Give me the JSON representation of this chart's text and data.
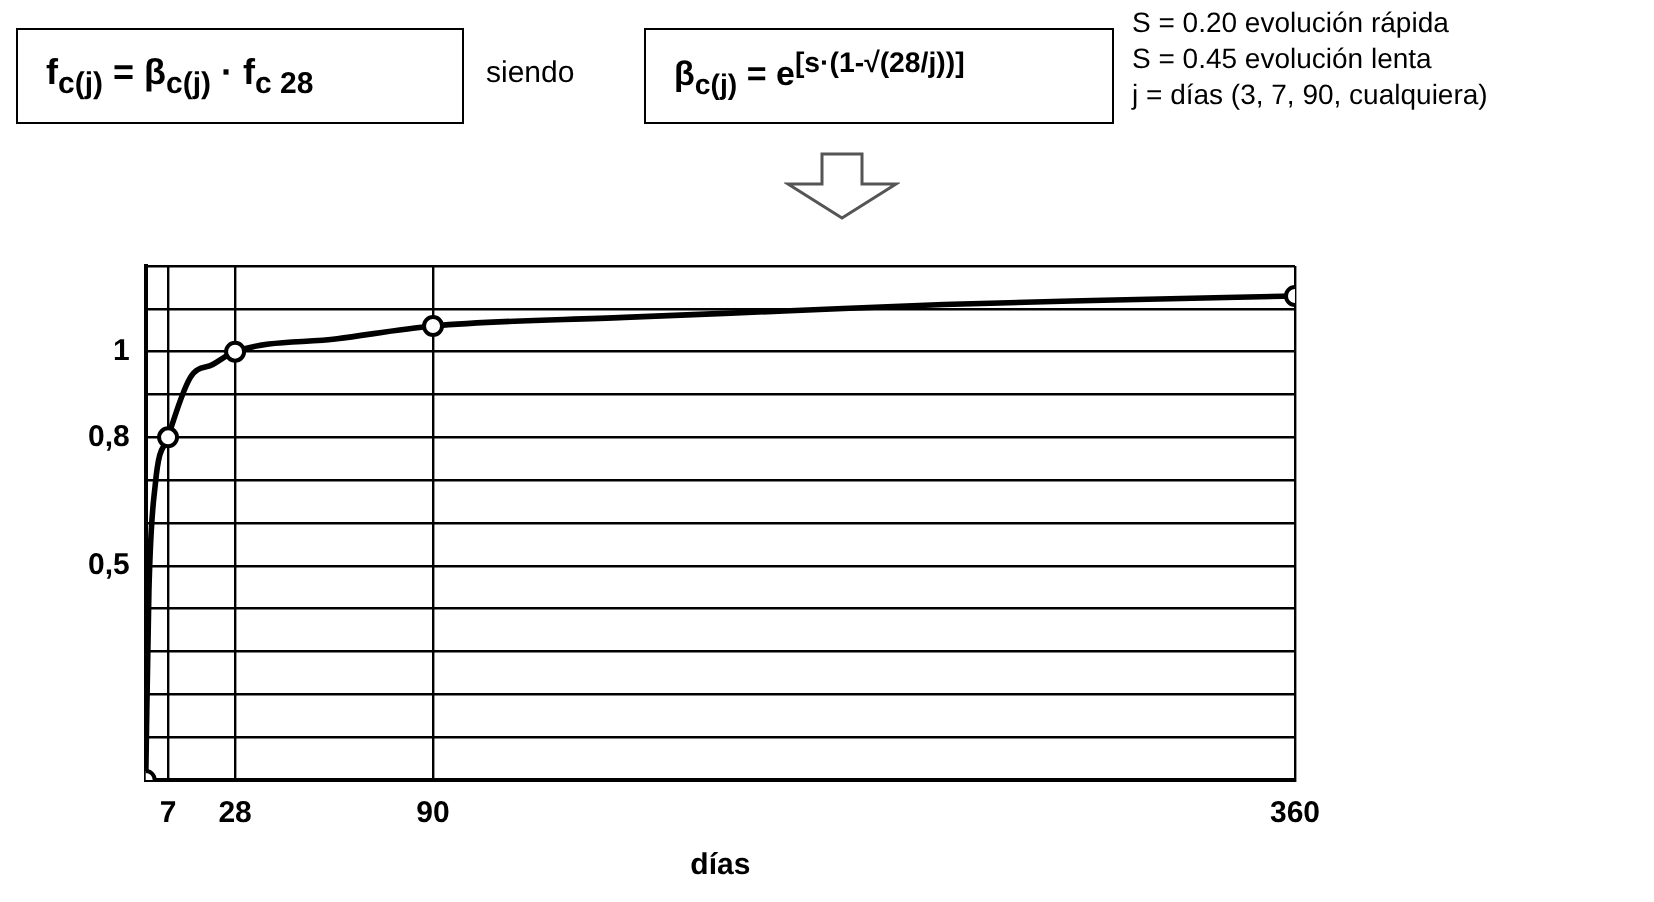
{
  "chart_data": {
    "type": "line",
    "xlabel": "días",
    "annotations": [
      "f$_{c(j)}$ = β$_{c(j)}$ · f$_{c 28}$",
      "siendo",
      "β$_{c(j)}$ = e$^{[s·(1-√(28/j))]}$",
      "S = 0.20 evolución rápida",
      "S = 0.45 evolución lenta",
      "j =  días (3, 7, 90, cualquiera)"
    ],
    "series": [
      {
        "color": "#000000",
        "marker": "none",
        "x": [
          0,
          1,
          3,
          7,
          14,
          21,
          28,
          60,
          90,
          150,
          200,
          250,
          300,
          360
        ],
        "values": [
          0,
          0.44,
          0.69,
          0.8,
          0.94,
          0.97,
          1,
          1.03,
          1.06,
          1.08,
          1.095,
          1.11,
          1.12,
          1.13
        ]
      },
      {
        "type": "scatter",
        "color": "#000000",
        "marker": "circle",
        "x": [
          0,
          7,
          28,
          90,
          360
        ],
        "values": [
          0,
          0.8,
          1,
          1.06,
          1.13
        ]
      }
    ],
    "xlim": [
      0,
      360
    ],
    "xticks": [
      7,
      28,
      90,
      360
    ],
    "ylim": [
      0,
      1.2
    ],
    "yticks": [
      {
        "value": 0,
        "label": null
      },
      {
        "value": 0.1,
        "label": null
      },
      {
        "value": 0.2,
        "label": null
      },
      {
        "value": 0.3,
        "label": null
      },
      {
        "value": 0.4,
        "label": null
      },
      {
        "value": 0.5,
        "label": "0,5"
      },
      {
        "value": 0.6,
        "label": null
      },
      {
        "value": 0.7,
        "label": null
      },
      {
        "value": 0.8,
        "label": "0,8"
      },
      {
        "value": 0.9,
        "label": null
      },
      1,
      {
        "value": 1.1,
        "label": null
      },
      {
        "value": 1.2,
        "label": null
      }
    ],
    "grid": true,
    "legend": false
  }
}
